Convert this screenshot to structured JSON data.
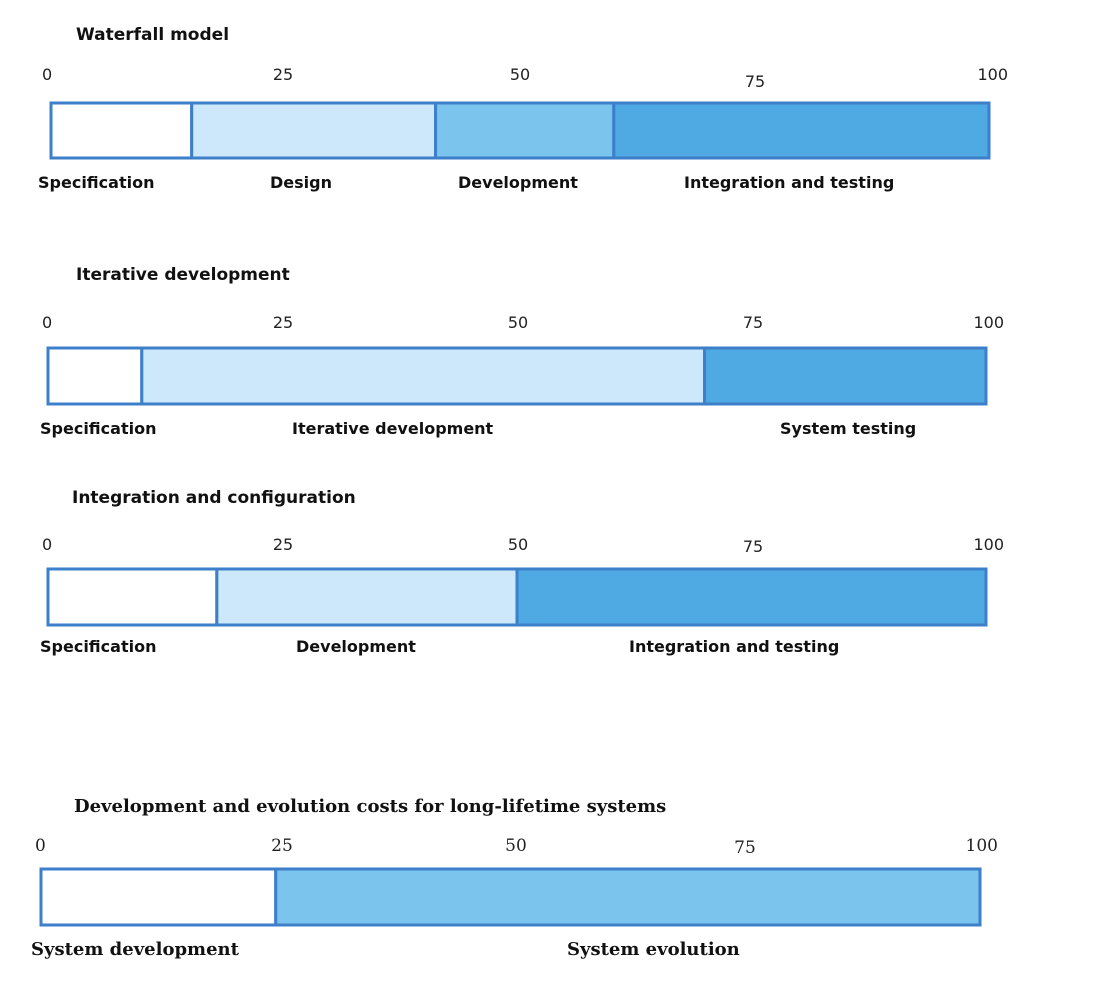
{
  "chart_data": [
    {
      "type": "bar",
      "orientation": "horizontal-stacked",
      "title": "Waterfall model",
      "ticks": [
        "0",
        "25",
        "50",
        "75",
        "100"
      ],
      "xlim": [
        0,
        100
      ],
      "segments": [
        {
          "label": "Specification",
          "start": 0,
          "end": 15,
          "color": "#ffffff"
        },
        {
          "label": "Design",
          "start": 15,
          "end": 41,
          "color": "#cce8fa"
        },
        {
          "label": "Development",
          "start": 41,
          "end": 60,
          "color": "#7ac4ee"
        },
        {
          "label": "Integration and testing",
          "start": 60,
          "end": 100,
          "color": "#4faae3"
        }
      ]
    },
    {
      "type": "bar",
      "orientation": "horizontal-stacked",
      "title": "Iterative development",
      "ticks": [
        "0",
        "25",
        "50",
        "75",
        "100"
      ],
      "xlim": [
        0,
        100
      ],
      "segments": [
        {
          "label": "Specification",
          "start": 0,
          "end": 10,
          "color": "#ffffff"
        },
        {
          "label": "Iterative development",
          "start": 10,
          "end": 70,
          "color": "#cce8fa"
        },
        {
          "label": "System testing",
          "start": 70,
          "end": 100,
          "color": "#4faae3"
        }
      ]
    },
    {
      "type": "bar",
      "orientation": "horizontal-stacked",
      "title": "Integration and configuration",
      "ticks": [
        "0",
        "25",
        "50",
        "75",
        "100"
      ],
      "xlim": [
        0,
        100
      ],
      "segments": [
        {
          "label": "Specification",
          "start": 0,
          "end": 18,
          "color": "#ffffff"
        },
        {
          "label": "Development",
          "start": 18,
          "end": 50,
          "color": "#cce8fa"
        },
        {
          "label": "Integration and testing",
          "start": 50,
          "end": 100,
          "color": "#4faae3"
        }
      ]
    },
    {
      "type": "bar",
      "orientation": "horizontal-stacked",
      "title": "Development and evolution costs for long-lifetime systems",
      "ticks": [
        "0",
        "25",
        "50",
        "75",
        "100"
      ],
      "xlim": [
        0,
        100
      ],
      "segments": [
        {
          "label": "System development",
          "start": 0,
          "end": 25,
          "color": "#ffffff"
        },
        {
          "label": "System evolution",
          "start": 25,
          "end": 100,
          "color": "#7ac4ee"
        }
      ]
    }
  ],
  "border_color": "#3d7fc9"
}
